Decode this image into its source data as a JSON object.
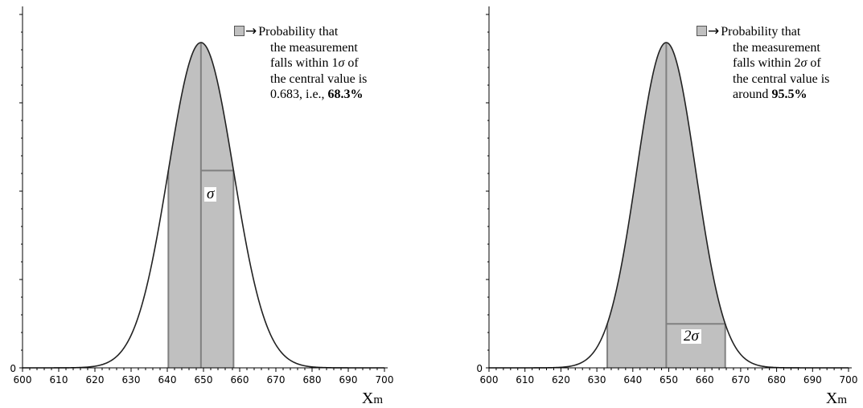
{
  "chart_data": [
    {
      "type": "area",
      "distribution": "normal",
      "mean": 649.3,
      "sigma": 9,
      "shaded_region": [
        640.3,
        658.3
      ],
      "interval_label_prefix": "",
      "interval_label_symbol": "σ",
      "xlim": [
        600,
        700
      ],
      "xticks": [
        600,
        610,
        620,
        630,
        640,
        650,
        660,
        670,
        680,
        690,
        700
      ],
      "y_tick_label": "0",
      "xlabel_main": "X",
      "xlabel_sub": "m",
      "grid": false,
      "annotation": {
        "line1": "Probability that",
        "line2": "the measurement",
        "line3_pre": "falls within 1",
        "line3_sym": "σ",
        "line3_post": " of",
        "line4": "the central value is",
        "line5_pre": "0.683, i.e., ",
        "line5_bold": "68.3%"
      }
    },
    {
      "type": "area",
      "distribution": "normal",
      "mean": 649.3,
      "sigma": 8.2,
      "shaded_region": [
        632.9,
        665.7
      ],
      "interval_label_prefix": "2",
      "interval_label_symbol": "σ",
      "xlim": [
        600,
        700
      ],
      "xticks": [
        600,
        610,
        620,
        630,
        640,
        650,
        660,
        670,
        680,
        690,
        700
      ],
      "y_tick_label": "0",
      "xlabel_main": "X",
      "xlabel_sub": "m",
      "grid": false,
      "annotation": {
        "line1": "Probability that",
        "line2": "the measurement",
        "line3_pre": "falls within 2",
        "line3_sym": "σ",
        "line3_post": " of",
        "line4": "the central value is",
        "line5_pre": "around ",
        "line5_bold": "95.5%"
      }
    }
  ]
}
